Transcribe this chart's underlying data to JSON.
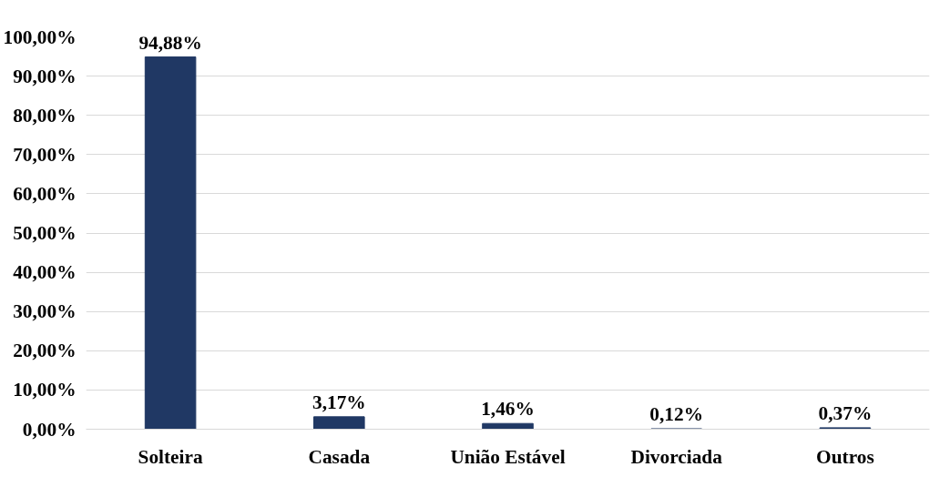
{
  "chart_data": {
    "type": "bar",
    "categories": [
      "Solteira",
      "Casada",
      "União Estável",
      "Divorciada",
      "Outros"
    ],
    "values": [
      94.88,
      3.17,
      1.46,
      0.12,
      0.37
    ],
    "value_labels": [
      "94,88%",
      "3,17%",
      "1,46%",
      "0,12%",
      "0,37%"
    ],
    "color": "#203864",
    "ylim": [
      0,
      100
    ],
    "yticks": [
      {
        "value": 0,
        "label": "0,00%"
      },
      {
        "value": 10,
        "label": "10,00%"
      },
      {
        "value": 20,
        "label": "20,00%"
      },
      {
        "value": 30,
        "label": "30,00%"
      },
      {
        "value": 40,
        "label": "40,00%"
      },
      {
        "value": 50,
        "label": "50,00%"
      },
      {
        "value": 60,
        "label": "60,00%"
      },
      {
        "value": 70,
        "label": "70,00%"
      },
      {
        "value": 80,
        "label": "80,00%"
      },
      {
        "value": 90,
        "label": "90,00%"
      },
      {
        "value": 100,
        "label": "100,00%"
      }
    ],
    "grid": "y"
  }
}
